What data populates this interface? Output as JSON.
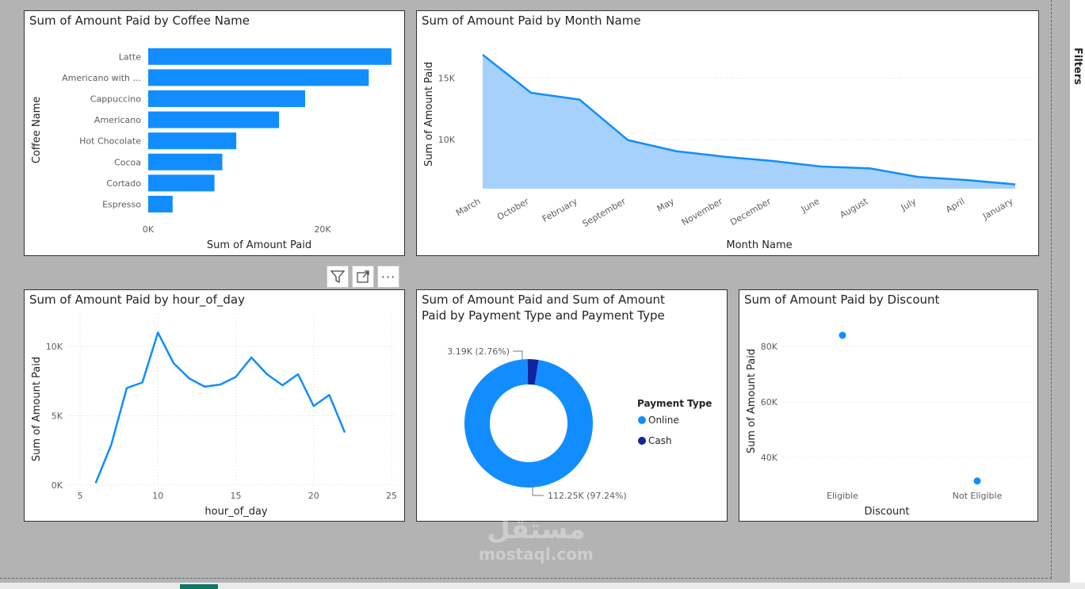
{
  "colors": {
    "primary": "#118dff",
    "area_fill": "#a6d1fb",
    "cash": "#12239e"
  },
  "chart_data": [
    {
      "type": "bar",
      "orientation": "horizontal",
      "title": "Sum of Amount Paid by Coffee Name",
      "xlabel": "Sum of Amount Paid",
      "ylabel": "Coffee Name",
      "categories": [
        "Latte",
        "Americano with ...",
        "Cappuccino",
        "Americano",
        "Hot Chocolate",
        "Cocoa",
        "Cortado",
        "Espresso"
      ],
      "values": [
        27900,
        25300,
        18000,
        15000,
        10100,
        8500,
        7600,
        2800
      ],
      "xlim": [
        0,
        30000
      ],
      "xticks": [
        {
          "value": 0,
          "label": "0K"
        },
        {
          "value": 20000,
          "label": "20K"
        }
      ],
      "grid": false
    },
    {
      "type": "area",
      "title": "Sum of Amount Paid by Month Name",
      "xlabel": "Month Name",
      "ylabel": "Sum of Amount Paid",
      "categories": [
        "March",
        "October",
        "February",
        "September",
        "May",
        "November",
        "December",
        "June",
        "August",
        "July",
        "April",
        "January"
      ],
      "values": [
        16900,
        13800,
        13250,
        9950,
        9050,
        8600,
        8250,
        7800,
        7650,
        6950,
        6700,
        6350
      ],
      "ylim": [
        6000,
        18000
      ],
      "yticks": [
        {
          "value": 10000,
          "label": "10K"
        },
        {
          "value": 15000,
          "label": "15K"
        }
      ],
      "grid": true
    },
    {
      "type": "line",
      "title": "Sum of Amount Paid by hour_of_day",
      "xlabel": "hour_of_day",
      "ylabel": "Sum of Amount Paid",
      "x": [
        6,
        7,
        8,
        9,
        10,
        11,
        12,
        13,
        14,
        15,
        16,
        17,
        18,
        19,
        20,
        21,
        22
      ],
      "values": [
        150,
        2900,
        7000,
        7400,
        11000,
        8800,
        7700,
        7100,
        7250,
        7800,
        9200,
        8000,
        7200,
        8000,
        5700,
        6500,
        3800
      ],
      "xlim": [
        4.5,
        25.5
      ],
      "ylim": [
        0,
        12000
      ],
      "xticks": [
        {
          "value": 5,
          "label": "5"
        },
        {
          "value": 10,
          "label": "10"
        },
        {
          "value": 15,
          "label": "15"
        },
        {
          "value": 20,
          "label": "20"
        },
        {
          "value": 25,
          "label": "25"
        }
      ],
      "yticks": [
        {
          "value": 0,
          "label": "0K"
        },
        {
          "value": 5000,
          "label": "5K"
        },
        {
          "value": 10000,
          "label": "10K"
        }
      ],
      "grid": true
    },
    {
      "type": "pie",
      "donut": true,
      "title": "Sum of Amount Paid and Sum of Amount\nPaid by Payment Type and Payment Type",
      "legend_title": "Payment Type",
      "legend_position": "right",
      "slices": [
        {
          "name": "Online",
          "value": 112250,
          "label": "112.25K (97.24%)",
          "color": "#118dff"
        },
        {
          "name": "Cash",
          "value": 3190,
          "label": "3.19K (2.76%)",
          "color": "#12239e"
        }
      ]
    },
    {
      "type": "scatter",
      "title": "Sum of Amount Paid by Discount",
      "xlabel": "Discount",
      "ylabel": "Sum of Amount Paid",
      "categories": [
        "Eligible",
        "Not Eligible"
      ],
      "values": [
        84000,
        31500
      ],
      "ylim": [
        33000,
        90000
      ],
      "yticks": [
        {
          "value": 40000,
          "label": "40K"
        },
        {
          "value": 60000,
          "label": "60K"
        },
        {
          "value": 80000,
          "label": "80K"
        }
      ],
      "grid": true
    }
  ],
  "filters_pane": {
    "label": "Filters"
  },
  "toolbar": {
    "filter_icon": "filter-icon",
    "focus_icon": "focus-mode-icon",
    "more_icon": "more-options-icon",
    "more_glyph": "···"
  },
  "watermark": {
    "text_arabic": "مستقل",
    "text_latin": "mostaql.com"
  }
}
